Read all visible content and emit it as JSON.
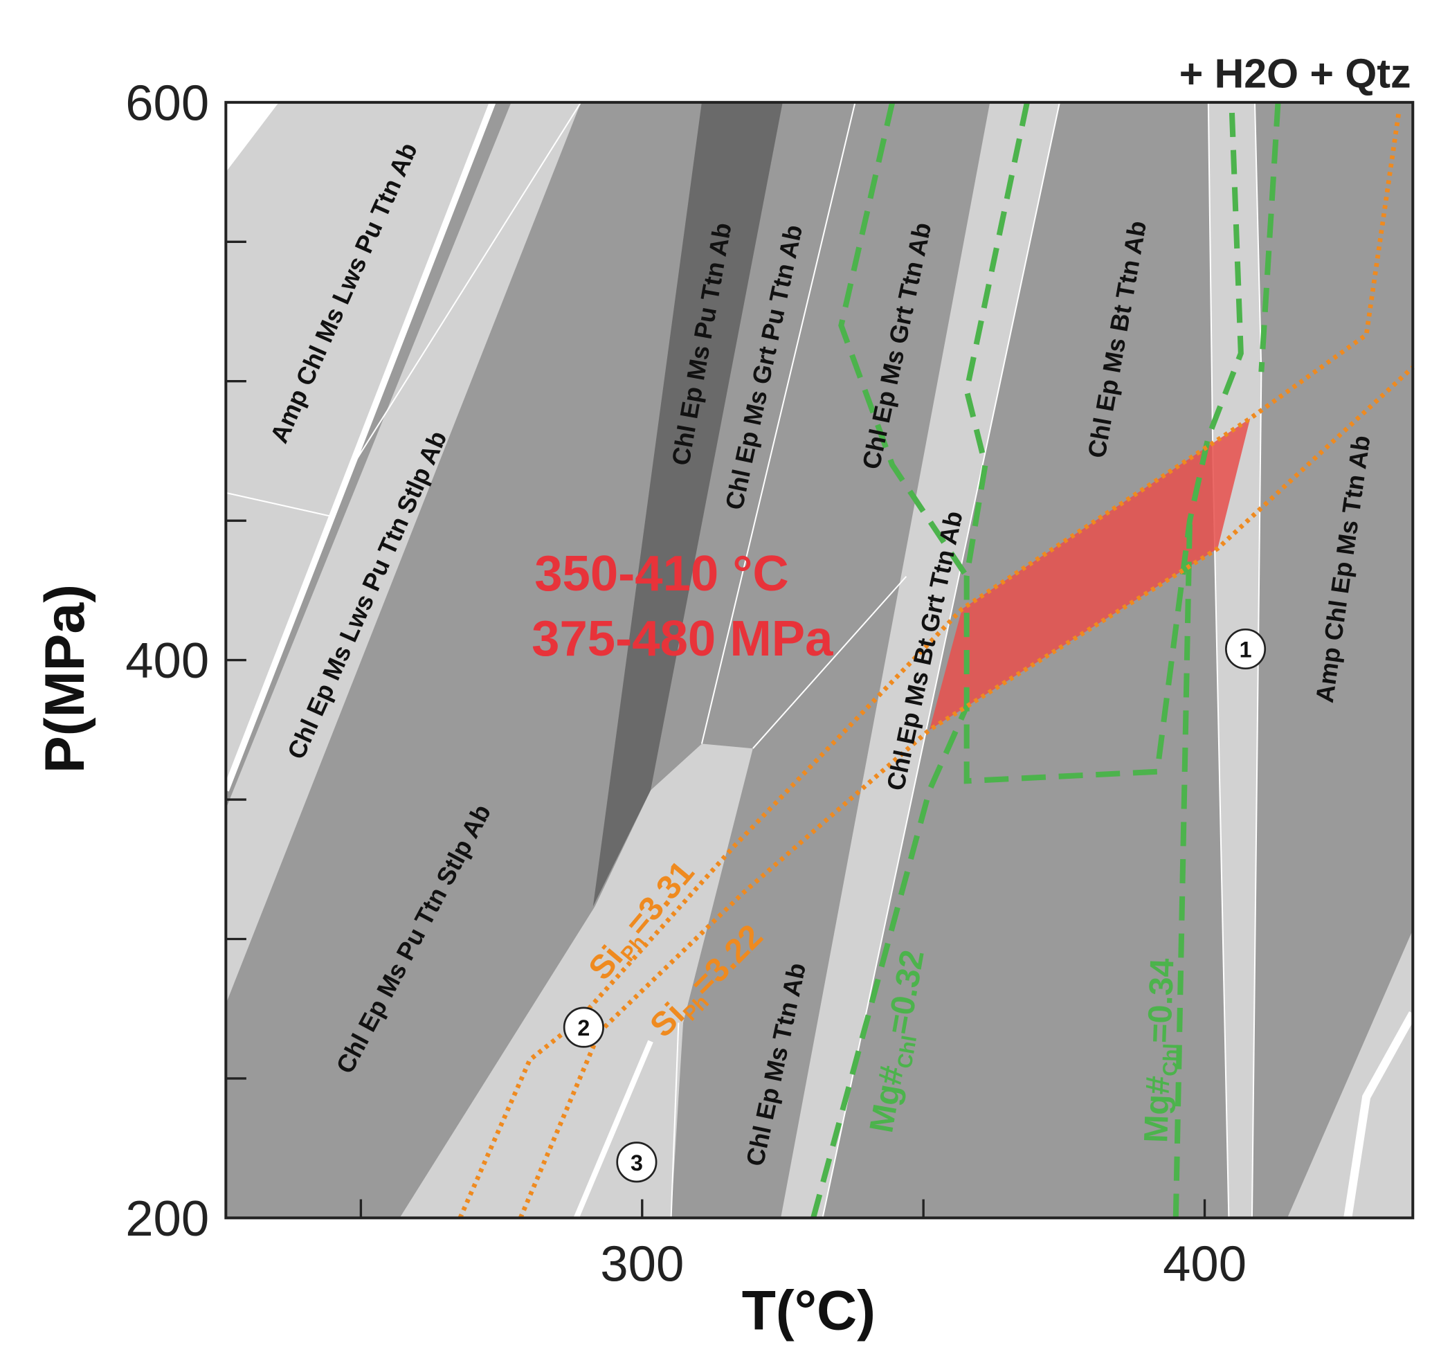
{
  "chart_data": {
    "type": "pseudosection",
    "corner_label": "+ H2O + Qtz",
    "x_label": "T(°C)",
    "y_label": "P(MPa)",
    "xlim": [
      226,
      437
    ],
    "ylim": [
      200,
      600
    ],
    "xticks": [
      300,
      400
    ],
    "minor_xticks": [
      250,
      350
    ],
    "yticks": [
      200,
      400,
      600
    ],
    "minor_yticks": [
      250,
      300,
      350,
      450,
      500,
      550
    ],
    "fields": [
      "Amp Chl Ms Lws Pu Ttn Ab",
      "Chl Ep Ms Lws Pu Ttn Stlp Ab",
      "Chl Ep Ms Pu Ttn Stlp Ab",
      "Chl Ep Ms Pu Ttn Ab",
      "Chl Ep Ms Grt Pu Ttn Ab",
      "Chl Ep Ms Grt Ttn Ab",
      "Chl Ep Ms Bt Grt Ttn Ab",
      "Chl Ep Ms Bt Ttn Ab",
      "Amp Chl Ep Ms Ttn Ab",
      "Chl Ep Ms Ttn Ab"
    ],
    "estimate": {
      "temperature": "350-410 °C",
      "pressure": "375-480 MPa"
    },
    "isopleths": [
      {
        "name": "Si",
        "subscript": "Ph",
        "label": "=3.31"
      },
      {
        "name": "Si",
        "subscript": "Ph",
        "label": "=3.22"
      },
      {
        "name": "Mg#",
        "subscript": "Chl",
        "label": "=0.32"
      },
      {
        "name": "Mg#",
        "subscript": "Chl",
        "label": "=0.34"
      }
    ],
    "markers": [
      "1",
      "2",
      "3"
    ]
  }
}
